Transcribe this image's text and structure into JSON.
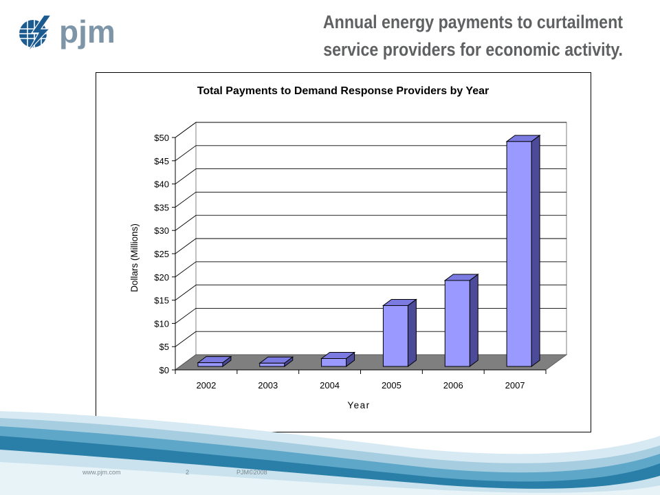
{
  "brand": {
    "logo_text": "pjm"
  },
  "slide": {
    "title_line1": "Annual energy payments to curtailment",
    "title_line2": "service providers for economic activity."
  },
  "footer": {
    "url": "www.pjm.com",
    "page_number": "2",
    "copyright": "PJM©2008"
  },
  "colors": {
    "bar_front": "#9999ff",
    "bar_side": "#4b4b99",
    "bar_top": "#7a7ae0",
    "floor": "#7f7f7f",
    "title_gray": "#5f6062",
    "brand_blue": "#1b5b8f"
  },
  "chart_data": {
    "type": "bar",
    "title": "Total Payments to Demand Response Providers by Year",
    "xlabel": "Year",
    "ylabel": "Dollars (Millions)",
    "categories": [
      "2002",
      "2003",
      "2004",
      "2005",
      "2006",
      "2007"
    ],
    "values": [
      0.8,
      0.7,
      1.7,
      13.1,
      18.5,
      48.4
    ],
    "ylim": [
      0,
      50
    ],
    "ytick_values": [
      0,
      5,
      10,
      15,
      20,
      25,
      30,
      35,
      40,
      45,
      50
    ],
    "ytick_labels": [
      "$0",
      "$5",
      "$10",
      "$15",
      "$20",
      "$25",
      "$30",
      "$35",
      "$40",
      "$45",
      "$50"
    ],
    "grid": true,
    "three_d": true,
    "legend": "none"
  }
}
